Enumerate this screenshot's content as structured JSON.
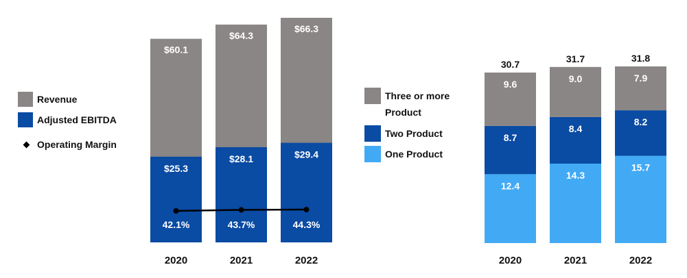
{
  "colors": {
    "revenue": "#8a8685",
    "ebitda": "#0a4ba3",
    "margin_line": "#000000",
    "three_plus": "#8a8685",
    "two_product": "#0a4ba3",
    "one_product": "#42aaf5",
    "bar_text": "#ffffff",
    "axis_text": "#111111"
  },
  "legend_left": {
    "revenue": "Revenue",
    "ebitda": "Adjusted EBITDA",
    "margin": "Operating Margin"
  },
  "legend_right": {
    "three_plus": "Three or more Product",
    "two_product": "Two Product",
    "one_product": "One Product"
  },
  "chart_data": [
    {
      "type": "bar",
      "stacked": false,
      "overlapping": true,
      "categories": [
        "2020",
        "2021",
        "2022"
      ],
      "series": [
        {
          "name": "Revenue",
          "values": [
            60.1,
            64.3,
            66.3
          ],
          "labels": [
            "$60.1",
            "$64.3",
            "$66.3"
          ]
        },
        {
          "name": "Adjusted EBITDA",
          "values": [
            25.3,
            28.1,
            29.4
          ],
          "labels": [
            "$25.3",
            "$28.1",
            "$29.4"
          ]
        },
        {
          "name": "Operating Margin",
          "type": "line",
          "values": [
            42.1,
            43.7,
            44.3
          ],
          "labels": [
            "42.1%",
            "43.7%",
            "44.3%"
          ]
        }
      ],
      "ylim": [
        0,
        66.3
      ]
    },
    {
      "type": "bar",
      "stacked": true,
      "categories": [
        "2020",
        "2021",
        "2022"
      ],
      "totals": [
        30.7,
        31.7,
        31.8
      ],
      "series": [
        {
          "name": "One Product",
          "values": [
            12.4,
            14.3,
            15.7
          ],
          "labels": [
            "12.4",
            "14.3",
            "15.7"
          ]
        },
        {
          "name": "Two Product",
          "values": [
            8.7,
            8.4,
            8.2
          ],
          "labels": [
            "8.7",
            "8.4",
            "8.2"
          ]
        },
        {
          "name": "Three or more Product",
          "values": [
            9.6,
            9.0,
            7.9
          ],
          "labels": [
            "9.6",
            "9.0",
            "7.9"
          ]
        }
      ],
      "ylim": [
        0,
        31.8
      ]
    }
  ]
}
